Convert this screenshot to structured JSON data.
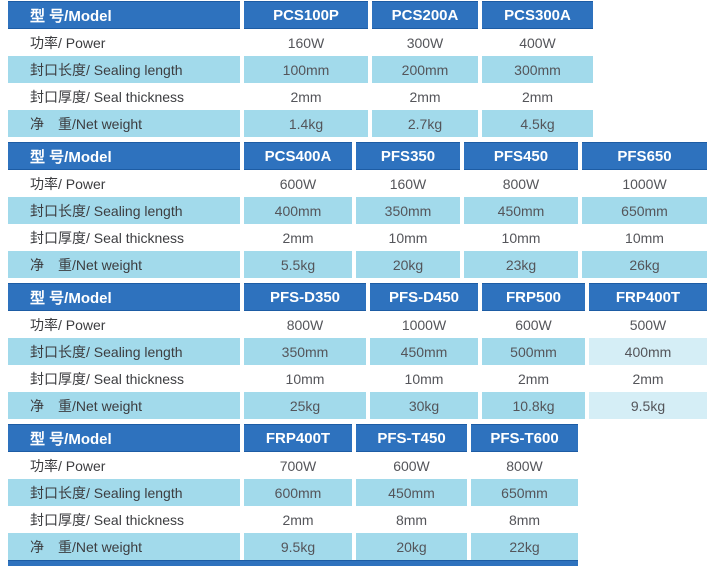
{
  "table": {
    "model_header_label": "型 号/Model",
    "row_labels": [
      "功率/ Power",
      "封口长度/ Sealing length",
      "封口厚度/ Seal thickness",
      "净　重/Net weight"
    ],
    "sections": [
      {
        "models": [
          "PCS100P",
          "PCS200A",
          "PCS300A"
        ],
        "rows": [
          [
            "160W",
            "300W",
            "400W"
          ],
          [
            "100mm",
            "200mm",
            "300mm"
          ],
          [
            "2mm",
            "2mm",
            "2mm"
          ],
          [
            "1.4kg",
            "2.7kg",
            "4.5kg"
          ]
        ]
      },
      {
        "models": [
          "PCS400A",
          "PFS350",
          "PFS450",
          "PFS650"
        ],
        "rows": [
          [
            "600W",
            "160W",
            "800W",
            "1000W"
          ],
          [
            "400mm",
            "350mm",
            "450mm",
            "650mm"
          ],
          [
            "2mm",
            "10mm",
            "10mm",
            "10mm"
          ],
          [
            "5.5kg",
            "20kg",
            "23kg",
            "26kg"
          ]
        ]
      },
      {
        "models": [
          "PFS-D350",
          "PFS-D450",
          "FRP500",
          "FRP400T"
        ],
        "rows": [
          [
            "800W",
            "1000W",
            "600W",
            "500W"
          ],
          [
            "350mm",
            "450mm",
            "500mm",
            "400mm"
          ],
          [
            "10mm",
            "10mm",
            "2mm",
            "2mm"
          ],
          [
            "25kg",
            "30kg",
            "10.8kg",
            "9.5kg"
          ]
        ]
      },
      {
        "models": [
          "FRP400T",
          "PFS-T450",
          "PFS-T600"
        ],
        "rows": [
          [
            "700W",
            "600W",
            "800W"
          ],
          [
            "600mm",
            "450mm",
            "650mm"
          ],
          [
            "2mm",
            "8mm",
            "8mm"
          ],
          [
            "9.5kg",
            "20kg",
            "22kg"
          ]
        ]
      }
    ]
  },
  "colors": {
    "header_blue": "#2e72be",
    "header_border": "#1d5ca4",
    "stripe_blue": "#a2daeb",
    "stripe_light": "#d5eef6",
    "header_text": "#ffffff",
    "label_text": "#3c3d40",
    "value_text": "#54555a"
  }
}
